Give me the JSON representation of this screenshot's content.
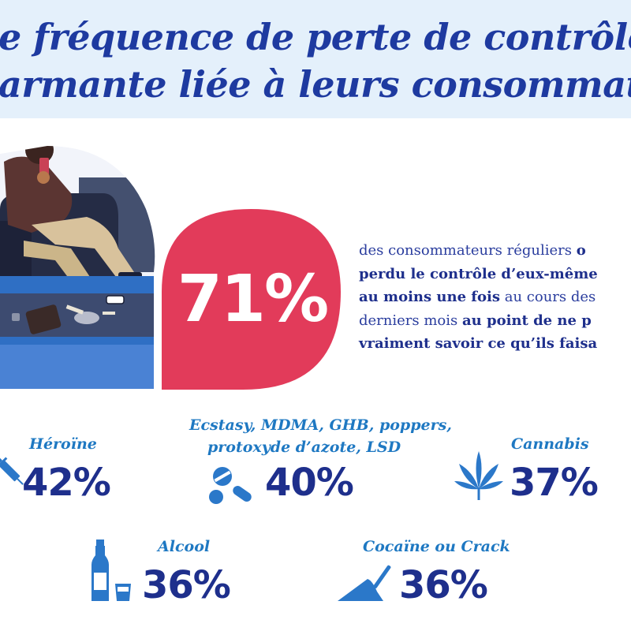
{
  "header": {
    "line1": "e fréquence de perte de contrôle",
    "line2": "armante liée à leurs consommati"
  },
  "main_stat": {
    "value": "71%",
    "lines": [
      {
        "light": "des consommateurs réguliers ",
        "bold": "o"
      },
      {
        "light": "",
        "bold": "perdu le contrôle d’eux-même"
      },
      {
        "light": "",
        "bold": "au moins une fois",
        "light2": " au cours des"
      },
      {
        "light": "derniers mois ",
        "bold": "au point de ne p"
      },
      {
        "light": "",
        "bold": "vraiment savoir ce qu’ils faisa"
      }
    ]
  },
  "substances": [
    {
      "label": "Héroïne",
      "value": "42%",
      "icon": "syringe-icon"
    },
    {
      "label_line1": "Ecstasy, MDMA, GHB, poppers,",
      "label_line2": "protoxyde d’azote, LSD",
      "value": "40%",
      "icon": "pills-icon"
    },
    {
      "label": "Cannabis",
      "value": "37%",
      "icon": "cannabis-leaf-icon"
    },
    {
      "label": "Alcool",
      "value": "36%",
      "icon": "bottle-and-glass-icon"
    },
    {
      "label": "Cocaïne ou Crack",
      "value": "36%",
      "icon": "powder-straw-icon"
    }
  ],
  "colors": {
    "banner_bg": "#e4f0fb",
    "title": "#1e3aa0",
    "drop": "#e23b5a",
    "navy": "#1e2f8c",
    "label_blue": "#1e78c2",
    "icon_blue": "#2b78c9"
  }
}
